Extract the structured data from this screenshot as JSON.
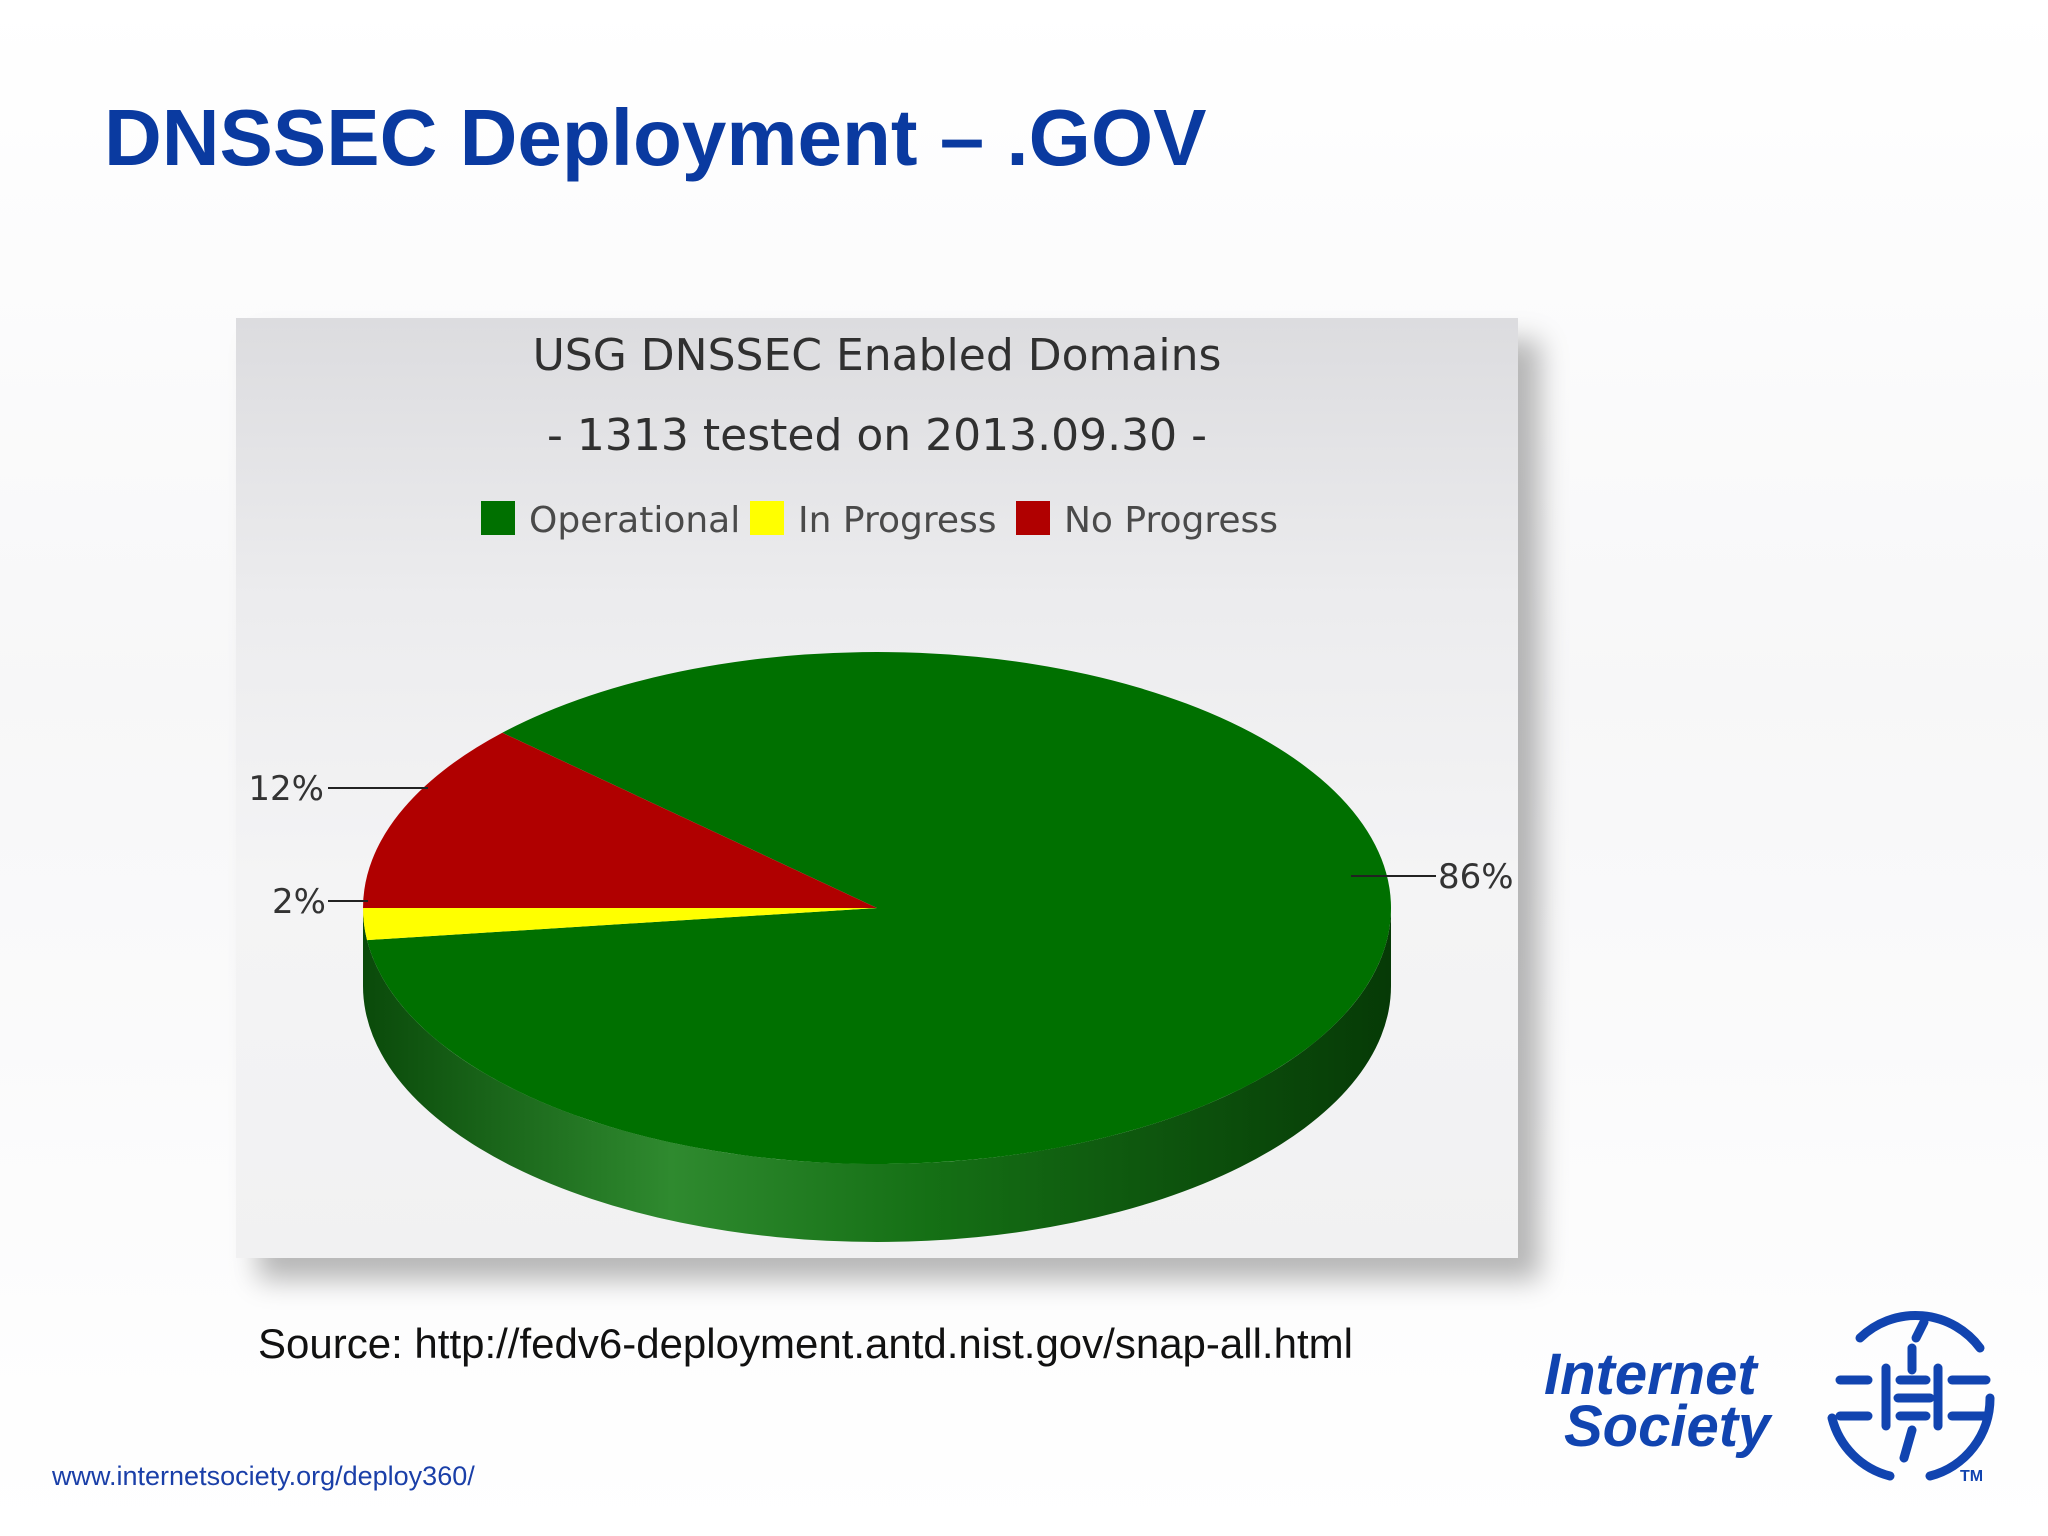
{
  "slide": {
    "title": "DNSSEC Deployment – .GOV",
    "source": "Source: http://fedv6-deployment.antd.nist.gov/snap-all.html",
    "footer_url": "www.internetsociety.org/deploy360/"
  },
  "logo": {
    "line1": "Internet",
    "line2": "Society",
    "tm": "TM",
    "color": "#1144b0"
  },
  "chart_data": {
    "type": "pie",
    "title": "USG DNSSEC Enabled Domains",
    "subtitle": "- 1313 tested on 2013.09.30 -",
    "categories": [
      "Operational",
      "In Progress",
      "No Progress"
    ],
    "values": [
      86,
      2,
      12
    ],
    "unit": "%",
    "data_labels": [
      "86%",
      "2%",
      "12%"
    ],
    "colors": [
      "#007000",
      "#ffff00",
      "#b00000"
    ],
    "legend_position": "top-center",
    "style": "3d"
  }
}
